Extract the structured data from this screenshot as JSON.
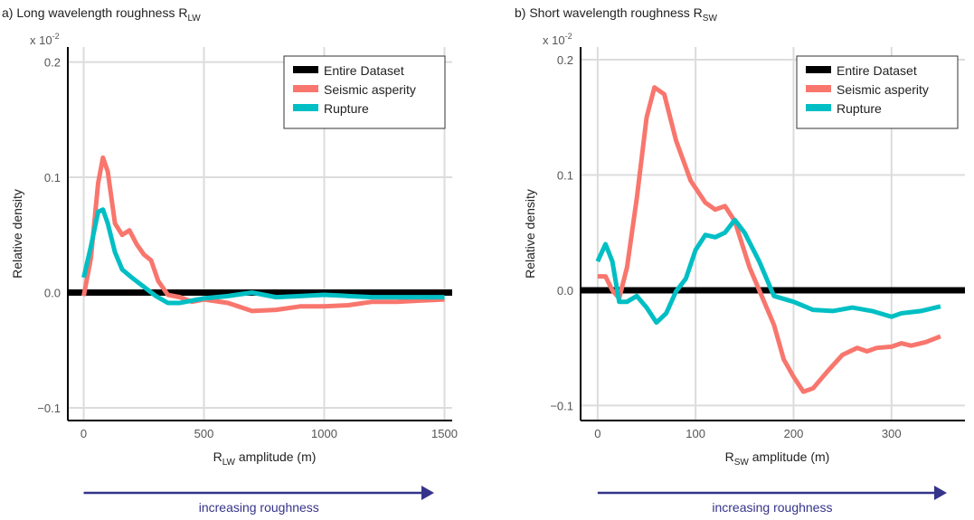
{
  "chart_data": [
    {
      "type": "line",
      "title": {
        "text": "a) Long wavelength roughness R",
        "subscript": "LW"
      },
      "y_multiplier": {
        "text": "x 10",
        "superscript": "-2"
      },
      "ylabel": "Relative density",
      "xlabel": {
        "text": "R",
        "subscript": "LW",
        "suffix": " amplitude (m)"
      },
      "annotation": "increasing roughness",
      "xlim": [
        -66,
        1532
      ],
      "xticks": [
        0,
        500,
        1000,
        1500
      ],
      "ylim": [
        -0.111,
        0.213
      ],
      "yticks": [
        {
          "value": -0.1,
          "label": "−0.1"
        },
        {
          "value": 0,
          "label": "0.0"
        },
        0.1,
        0.2
      ],
      "grid": true,
      "legend": "top-right",
      "series": [
        {
          "name": "Entire Dataset",
          "color": "#000000",
          "x": [
            -66,
            1532
          ],
          "values": [
            0,
            0
          ]
        },
        {
          "name": "Seismic asperity",
          "color": "#f8766d",
          "x": [
            0,
            30,
            60,
            80,
            100,
            130,
            160,
            190,
            220,
            250,
            280,
            310,
            350,
            400,
            450,
            500,
            600,
            700,
            800,
            900,
            1000,
            1100,
            1200,
            1300,
            1400,
            1500
          ],
          "values": [
            -0.003,
            0.03,
            0.095,
            0.117,
            0.105,
            0.06,
            0.05,
            0.054,
            0.042,
            0.033,
            0.028,
            0.01,
            -0.002,
            -0.004,
            -0.008,
            -0.006,
            -0.009,
            -0.016,
            -0.015,
            -0.012,
            -0.012,
            -0.011,
            -0.008,
            -0.008,
            -0.007,
            -0.006
          ]
        },
        {
          "name": "Rupture",
          "color": "#00bfc4",
          "x": [
            0,
            30,
            60,
            80,
            100,
            130,
            160,
            200,
            250,
            300,
            350,
            400,
            500,
            600,
            700,
            800,
            900,
            1000,
            1100,
            1200,
            1300,
            1400,
            1500
          ],
          "values": [
            0.013,
            0.04,
            0.07,
            0.072,
            0.06,
            0.035,
            0.02,
            0.013,
            0.005,
            -0.003,
            -0.009,
            -0.009,
            -0.005,
            -0.003,
            0.0,
            -0.004,
            -0.003,
            -0.002,
            -0.003,
            -0.004,
            -0.004,
            -0.004,
            -0.004
          ]
        }
      ]
    },
    {
      "type": "line",
      "title": {
        "text": "b) Short wavelength roughness R",
        "subscript": "SW"
      },
      "y_multiplier": {
        "text": "x 10",
        "superscript": "-2"
      },
      "ylabel": "Relative density",
      "xlabel": {
        "text": "R",
        "subscript": "SW",
        "suffix": " amplitude (m)"
      },
      "annotation": "increasing roughness",
      "xlim": [
        -17.4,
        375
      ],
      "xticks": [
        0,
        100,
        200,
        300
      ],
      "ylim": [
        -0.113,
        0.211
      ],
      "yticks": [
        {
          "value": -0.1,
          "label": "−0.1"
        },
        {
          "value": 0,
          "label": "0.0"
        },
        0.1,
        0.2
      ],
      "grid": true,
      "legend": "top-right",
      "series": [
        {
          "name": "Entire Dataset",
          "color": "#000000",
          "x": [
            -17.4,
            375
          ],
          "values": [
            0,
            0
          ]
        },
        {
          "name": "Seismic asperity",
          "color": "#f8766d",
          "x": [
            0,
            8,
            15,
            22,
            30,
            40,
            50,
            58,
            68,
            80,
            95,
            110,
            120,
            130,
            140,
            155,
            170,
            180,
            190,
            200,
            210,
            220,
            235,
            250,
            265,
            275,
            285,
            300,
            310,
            320,
            335,
            350
          ],
          "values": [
            0.012,
            0.012,
            0.0,
            -0.007,
            0.02,
            0.08,
            0.15,
            0.176,
            0.17,
            0.13,
            0.095,
            0.076,
            0.07,
            0.073,
            0.06,
            0.02,
            -0.01,
            -0.03,
            -0.06,
            -0.075,
            -0.088,
            -0.085,
            -0.07,
            -0.056,
            -0.05,
            -0.053,
            -0.05,
            -0.049,
            -0.046,
            -0.048,
            -0.045,
            -0.04
          ]
        },
        {
          "name": "Rupture",
          "color": "#00bfc4",
          "x": [
            0,
            8,
            15,
            22,
            30,
            40,
            50,
            60,
            70,
            80,
            90,
            100,
            110,
            120,
            130,
            140,
            150,
            165,
            180,
            200,
            220,
            240,
            260,
            280,
            300,
            310,
            330,
            350
          ],
          "values": [
            0.025,
            0.04,
            0.025,
            -0.01,
            -0.01,
            -0.005,
            -0.015,
            -0.028,
            -0.02,
            -0.001,
            0.01,
            0.035,
            0.048,
            0.046,
            0.05,
            0.061,
            0.05,
            0.025,
            -0.005,
            -0.01,
            -0.017,
            -0.018,
            -0.015,
            -0.018,
            -0.023,
            -0.02,
            -0.018,
            -0.014
          ]
        }
      ]
    }
  ]
}
